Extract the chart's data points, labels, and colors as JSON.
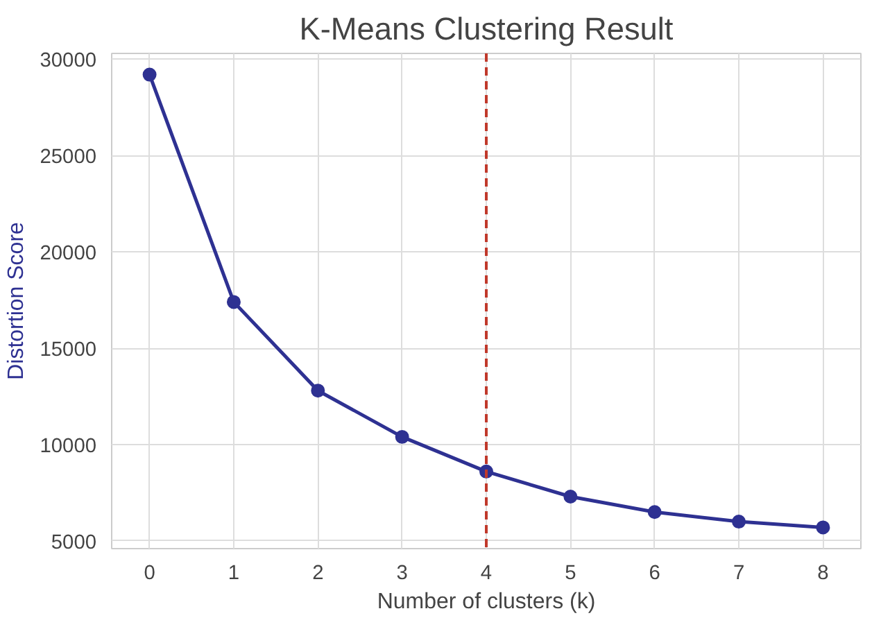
{
  "chart_data": {
    "type": "line",
    "title": "K-Means Clustering Result",
    "xlabel": "Number of clusters (k)",
    "ylabel": "Distortion Score",
    "x": [
      0,
      1,
      2,
      3,
      4,
      5,
      6,
      7,
      8
    ],
    "series": [
      {
        "color": "#2e3192",
        "values": [
          29200,
          17400,
          12800,
          10400,
          8600,
          7300,
          6500,
          6000,
          5700
        ]
      }
    ],
    "marker": "circle",
    "line_style": "solid",
    "grid": true,
    "xlim": [
      -0.45,
      8.45
    ],
    "ylim": [
      4600,
      30300
    ],
    "xticks": [
      0,
      1,
      2,
      3,
      4,
      5,
      6,
      7,
      8
    ],
    "yticks": [
      5000,
      10000,
      15000,
      20000,
      25000,
      30000
    ],
    "ref_lines": [
      {
        "axis": "x",
        "value": 4,
        "color": "#c0392b",
        "line_style": "dashed"
      }
    ]
  }
}
